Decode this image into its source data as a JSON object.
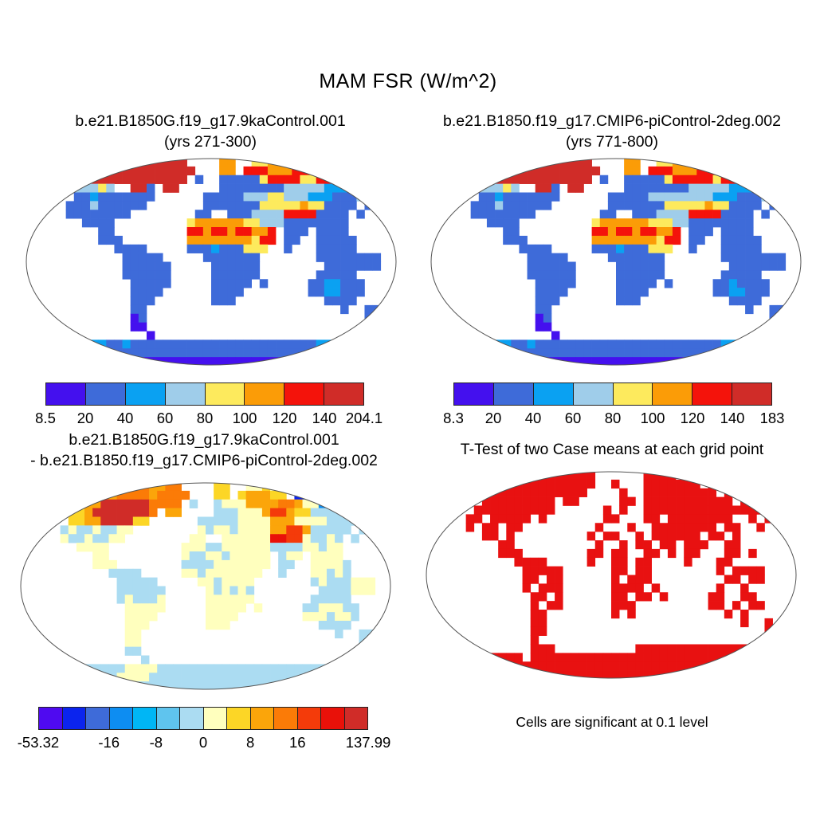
{
  "chart_data": {
    "type": "heatmap",
    "title": "MAM FSR (W/m^2)",
    "projection": "robinson",
    "units": "W/m^2",
    "season": "MAM",
    "grid_cols": 46,
    "grid_rows": 24,
    "panels": [
      {
        "id": "case1",
        "title_lines": [
          "b.e21.B1850G.f19_g17.9kaControl.001",
          "(yrs 271-300)"
        ],
        "colorbar": {
          "colors": [
            "#4410ee",
            "#3e6bd9",
            "#0aa1f2",
            "#9fcdea",
            "#fdea5d",
            "#fb9c07",
            "#f4130b",
            "#d02c28"
          ],
          "labels": [
            {
              "t": "8.5",
              "p": 0
            },
            {
              "t": "20",
              "p": 1
            },
            {
              "t": "40",
              "p": 2
            },
            {
              "t": "60",
              "p": 3
            },
            {
              "t": "80",
              "p": 4
            },
            {
              "t": "100",
              "p": 5
            },
            {
              "t": "120",
              "p": 6
            },
            {
              "t": "140",
              "p": 7
            },
            {
              "t": "204.1",
              "p": 8
            }
          ]
        },
        "palette": {
          "1": "#4410ee",
          "2": "#3e6bd9",
          "3": "#0aa1f2",
          "4": "#9fcdea",
          "5": "#fdea5d",
          "6": "#fb9c07",
          "7": "#f4130b",
          "8": "#d02c28"
        },
        "grid": [
          "............88888888....66..5566777...........",
          "...444..8888888888888...66.7776667777778855...",
          ".3344433888888888888.2..22222577775577447772..",
          ".4554444454..882.88.....22222222444443334442..",
          "......2232222222......2222244455444333222422..",
          ".....2224222222.......2222222555556552222.2...",
          ".....22222222........22..222444477772222.2....",
          ".......2222.........56666665544422222222......",
          ".........22.........77677677667.222.2222......",
          ".........222........66666666577.22..22222.....",
          "...........2222.....2223222555..2...22222.....",
          "............22222.....2222222.......22222222..",
          "............222222.....222222........2222222..",
          "............222222.....222222.......22222.....",
          ".............22222.....22222.2.....2233222....",
          ".............2222......2222........2233222....",
          ".............222.......222...........2222.....",
          ".............22........................2..22..",
          ".............12...........................2...",
          ".............11...............................",
          "...............1..............................",
          "........3322322222222222222222222222333222233....",
          ".....2222222222222222222222222222222222222....",
          ".......11111111111111111111111111111111......."
        ]
      },
      {
        "id": "case2",
        "title_lines": [
          "b.e21.B1850.f19_g17.CMIP6-piControl-2deg.002",
          "(yrs 771-800)"
        ],
        "colorbar": {
          "colors": [
            "#4410ee",
            "#3e6bd9",
            "#0aa1f2",
            "#9fcdea",
            "#fdea5d",
            "#fb9c07",
            "#f4130b",
            "#d02c28"
          ],
          "labels": [
            {
              "t": "8.3",
              "p": 0
            },
            {
              "t": "20",
              "p": 1
            },
            {
              "t": "40",
              "p": 2
            },
            {
              "t": "60",
              "p": 3
            },
            {
              "t": "80",
              "p": 4
            },
            {
              "t": "100",
              "p": 5
            },
            {
              "t": "120",
              "p": 6
            },
            {
              "t": "140",
              "p": 7
            },
            {
              "t": "183",
              "p": 8
            }
          ]
        },
        "palette": {
          "1": "#4410ee",
          "2": "#3e6bd9",
          "3": "#0aa1f2",
          "4": "#9fcdea",
          "5": "#fdea5d",
          "6": "#fb9c07",
          "7": "#f4130b",
          "8": "#d02c28"
        },
        "grid": [
          "............88888888....66..5566777...........",
          "...444..8888888888888...66.7776667777778855...",
          ".3344433888888888888.2..22222577777577447772..",
          ".4554444454..882.88.....22222222444443334442..",
          "......2232222222......2222244444444333222422..",
          ".....2224222222.......2222222555556552222.2...",
          ".....22222222........22..222444477772222.2....",
          ".......2222.........56666665554422222222......",
          ".........22.........77677677667.222.2222......",
          ".........222........66666666577.22..22222.....",
          "...........2222.....2223222555..2...22222.....",
          "............22222.....2222222.......22222222..",
          "............222222.....222222........2222222..",
          "............222222.....222222.......22222.....",
          ".............22222.....22222.2.....2232222....",
          ".............2222......2222........2233222....",
          ".............222.......222...........2222.....",
          ".............22........................2..22..",
          ".............12...........................2...",
          ".............11...............................",
          "...............1..............................",
          "........3322322222222222222222222222333222233....",
          ".....2222222222222222222222222222222222222....",
          ".......11111111111111111111111111111111......."
        ]
      },
      {
        "id": "difference",
        "title_lines": [
          "b.e21.B1850G.f19_g17.9kaControl.001",
          "- b.e21.B1850.f19_g17.CMIP6-piControl-2deg.002"
        ],
        "colorbar": {
          "colors": [
            "#4f0af0",
            "#0b24ee",
            "#3e6bd9",
            "#0d8df2",
            "#00b6f5",
            "#5fc4ee",
            "#abdcf2",
            "#ffffbe",
            "#fcd626",
            "#fba50a",
            "#fb7b07",
            "#f43b0a",
            "#e91109",
            "#d02c28"
          ],
          "labels": [
            {
              "t": "-53.32",
              "p": 0
            },
            {
              "t": "-16",
              "p": 3
            },
            {
              "t": "-8",
              "p": 5
            },
            {
              "t": "0",
              "p": 7
            },
            {
              "t": "8",
              "p": 9
            },
            {
              "t": "16",
              "p": 11
            },
            {
              "t": "137.99",
              "p": 14
            }
          ]
        },
        "palette": {
          "a": "#4f0af0",
          "b": "#0b24ee",
          "c": "#3e6bd9",
          "d": "#0d8df2",
          "e": "#00b6f5",
          "f": "#5fc4ee",
          "g": "#abdcf2",
          "h": "#ffffbe",
          "i": "#fcd626",
          "j": "#fba50a",
          "k": "#fb7b07",
          "l": "#f43b0a",
          "m": "#e91109",
          "n": "#d02c28"
        },
        "grid": [
          "............jjkkjjkk....ii..hhihhii...........",
          "...hhh..kkkjkkkkjkkkk...ii.ijjjii.bbdbbhhh....",
          ".hihhiihjjnnnnnnkkkk.g..ghhhjjjjkkjhhdggbbgg..",
          ".hhhhhiijnnnnnnnk.jj....ggghhhjlljiiggggeggg..",
          "......iijjnnnnii......ggggghhhhjjjhhhhgggggg..",
          ".....ghgghgghh........hghhghhhhjjlljggggg.g...",
          ".....hgghgghh........hh..hhhhhhmmllhgghg.g....",
          ".......hhhh.........hhhgghhhhhhgggghhghh......",
          ".........hh.........hgghhghhhhh.ghh.hhhh......",
          ".........hhh........gggghhhhhhh.gg..hhhhg.....",
          "...........gggg.....hhghhhhhhh..g...hhghg.....",
          "............ggggg.....hhghhhh.......ghggghhh..",
          "............gggggg.....hghghg........gggghhh..",
          "............ghgggh.....hhhhhh.......ggggg.....",
          ".............hhhhh.....hhhhh.h.....gghhhgg....",
          ".............hhhh......hhhh........hhhghhg....",
          ".............hhh.......hhh...........gggg.....",
          ".............hh........................g..gg..",
          ".............hh...........................g...",
          ".............gg...............................",
          "...............g..............................",
          "........ggggghhhhggggggggggggggggggggggggg....",
          ".....ggggggghhhhgggggggggggggggggggggggggg....",
          ".......gggggggggggggggggggggggggggggggg......."
        ]
      },
      {
        "id": "ttest",
        "title_lines": [
          "T-Test of two Case means at each grid point"
        ],
        "caption": "Cells are significant at 0.1 level",
        "palette": {
          "r": "#e81111"
        },
        "grid": [
          "............rrrrrrrrr......rrrr..rrr..........",
          "...r....rrrrrrrrrrrrr..r...rrrrrrr.rrrr.rr....",
          ".r.rr..rrrrrrrrrrrrr....r..rrrrrrrrr.rr.rrr...",
          "..rr...rrrrrrrrr.rr.....rr.rrrrrrrrrrr.rrr....",
          "......rrrrrrrrrr......r.r..rrrrrrrrrrrrrrr....",
          ".....rr.rrrrr.r.......rr...rr.rrrrrrrr..r.r...",
          ".....r.rr.rr.........r...r..rrrrrrrr.rr..r....",
          ".......rr.r.........r.rr..r.rrrrrr.rr.r.......",
          ".........rr..........r..r.rr.rr.rrr..rr......",
          ".........rrr........rr.rr..rr.r.rr...rr.r.....",
          "...........rrrr.....r..rr.rr....r...rr........",
          "............rrrrr......rr.rr........r.rrrr....",
          "............rr.rr......r.rrr.........rr.rr....",
          "............r.rrr......rrrr.r.......r..r......",
          ".............rr.r......rr.rr.r.....rr..rr.....",
          ".............r.rr......rrr.........rr.r.rr....",
          ".............rr........r.r...........r.r......",
          ".............rr........................r..r...",
          ".............rr...........................r...",
          ".............r................................",
          ".............rrr..........rrrrrrrrrrrrrrr.....",
          "......rrrrrr.rrrrrrrrrrrrrrrrrrrrrrrrrrrrrr...",
          ".....rrrrrrrrrrrrrrrrrrrrrrrrrrrrrrrrrrrrr....",
          ".......rrrrrrrrrrrrrrrrrrrrrrrrrrrrrrrr......."
        ]
      }
    ]
  }
}
